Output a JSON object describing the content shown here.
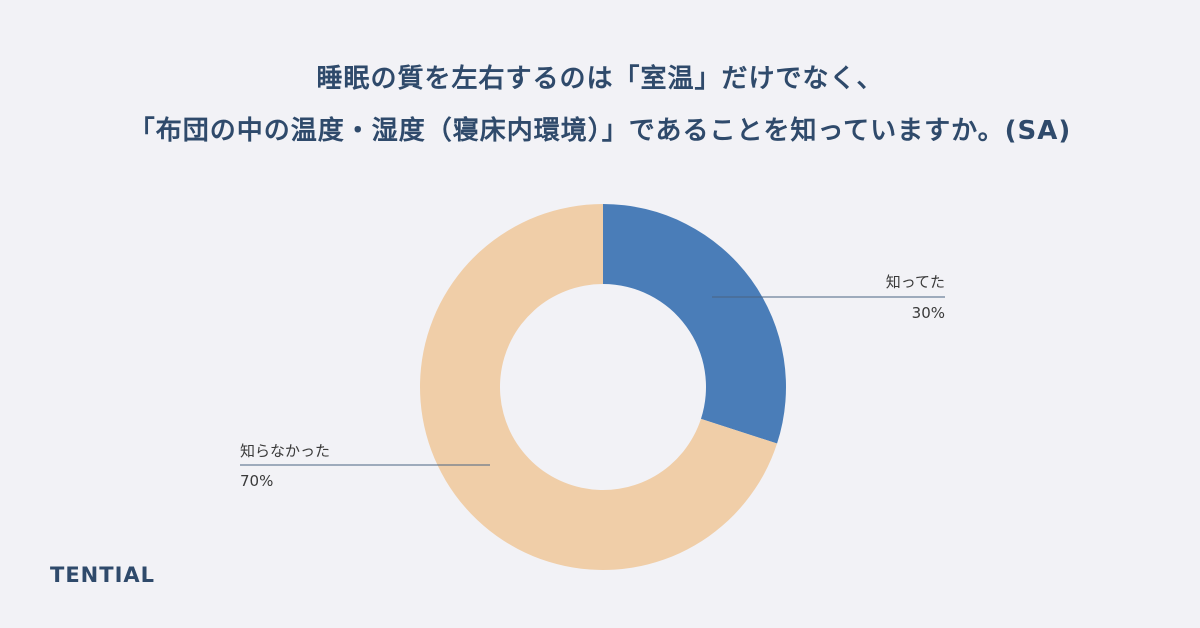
{
  "chart_data": {
    "type": "pie",
    "title_lines": [
      "睡眠の質を左右するのは「室温」だけでなく、",
      "「布団の中の温度・湿度（寝床内環境）」であることを知っていますか。(SA)"
    ],
    "slices": [
      {
        "name": "知ってた",
        "value": 30,
        "value_label": "30%",
        "color": "#4a7db8"
      },
      {
        "name": "知らなかった",
        "value": 70,
        "value_label": "70%",
        "color": "#f0cea8"
      }
    ],
    "donut": true,
    "leader_line_color": "#4a6482"
  },
  "brand": {
    "logo_text": "TENTIAL"
  }
}
